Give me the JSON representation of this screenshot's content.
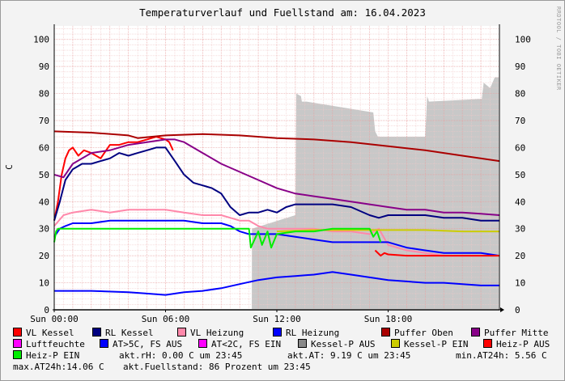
{
  "title": "Temperaturverlauf und Fuellstand am: 16.04.2023",
  "watermark": "RRDTOOL / TOBI OETIKER",
  "chart_data": {
    "type": "line",
    "ylabel": "C",
    "ylim": [
      0,
      105
    ],
    "y_ticks": [
      0,
      10,
      20,
      30,
      40,
      50,
      60,
      70,
      80,
      90,
      100
    ],
    "xlim": [
      0,
      24
    ],
    "x_ticks": [
      {
        "at": 0,
        "label": "Sun 00:00"
      },
      {
        "at": 6,
        "label": "Sun 06:00"
      },
      {
        "at": 12,
        "label": "Sun 12:00"
      },
      {
        "at": 18,
        "label": "Sun 18:00"
      }
    ],
    "grid": true,
    "legend_position": "bottom",
    "fill_area": {
      "name": "Fuellstand",
      "color": "#c8c8c8",
      "x": [
        10.65,
        10.66,
        13.0,
        13.05,
        13.3,
        13.35,
        13.6,
        17.2,
        17.3,
        17.45,
        20.0,
        20.1,
        20.2,
        23.05,
        23.15,
        23.5,
        23.75,
        23.96
      ],
      "y": [
        0,
        30,
        35,
        80,
        79,
        77,
        77,
        73,
        66,
        64,
        64,
        79,
        77,
        78,
        84,
        82,
        86,
        86
      ]
    },
    "series": [
      {
        "name": "VL Kessel",
        "color": "#ff0000",
        "x": [
          0,
          0.2,
          0.4,
          0.6,
          0.8,
          1.0,
          1.3,
          1.6,
          2.0,
          2.5,
          3.0,
          3.5,
          4.0,
          4.5,
          5.0,
          5.5,
          6.0,
          6.2,
          6.4
        ],
        "y": [
          33,
          40,
          50,
          56,
          59,
          60,
          57,
          59,
          58,
          56,
          61,
          61,
          62,
          62,
          63,
          64,
          63,
          62,
          59
        ]
      },
      {
        "name": "RL Kessel",
        "color": "#000080",
        "x": [
          0,
          0.3,
          0.6,
          1.0,
          1.5,
          2.0,
          2.5,
          3.0,
          3.5,
          4.0,
          4.5,
          5.0,
          5.5,
          6.0,
          6.5,
          7.0,
          7.5,
          8.0,
          8.5,
          9.0,
          9.5,
          10.0,
          10.5,
          11.0,
          11.5,
          12.0,
          12.5,
          13.0,
          14.0,
          15.0,
          16.0,
          17.0,
          17.5,
          18.0,
          19.0,
          20.0,
          21.0,
          22.0,
          23.0,
          24.0
        ],
        "y": [
          33,
          40,
          48,
          52,
          54,
          54,
          55,
          56,
          58,
          57,
          58,
          59,
          60,
          60,
          55,
          50,
          47,
          46,
          45,
          43,
          38,
          35,
          36,
          36,
          37,
          36,
          38,
          39,
          39,
          39,
          38,
          35,
          34,
          35,
          35,
          35,
          34,
          34,
          33,
          33
        ]
      },
      {
        "name": "VL Heizung",
        "color": "#ff88aa",
        "x": [
          0,
          0.5,
          1.0,
          2.0,
          3.0,
          4.0,
          5.0,
          6.0,
          7.0,
          8.0,
          9.0,
          9.5,
          10.0,
          10.5,
          11.0,
          11.5,
          12.0,
          13.0,
          14.0,
          15.0,
          16.0,
          17.0,
          17.5,
          18.0,
          19.0,
          20.0,
          21.0,
          22.0,
          23.0,
          24.0
        ],
        "y": [
          31,
          35,
          36,
          37,
          36,
          37,
          37,
          37,
          36,
          35,
          35,
          34,
          33,
          33,
          31,
          30,
          30,
          30,
          30,
          29,
          29,
          28,
          30,
          24,
          22,
          21,
          20,
          20,
          20,
          20
        ]
      },
      {
        "name": "RL Heizung",
        "color": "#0000ff",
        "x": [
          0,
          0.3,
          0.6,
          1.0,
          2.0,
          3.0,
          4.0,
          5.0,
          6.0,
          7.0,
          8.0,
          9.0,
          9.5,
          10.0,
          10.5,
          11.0,
          12.0,
          13.0,
          14.0,
          15.0,
          16.0,
          17.0,
          18.0,
          19.0,
          20.0,
          21.0,
          22.0,
          23.0,
          24.0
        ],
        "y": [
          27,
          30,
          31,
          32,
          32,
          33,
          33,
          33,
          33,
          33,
          32,
          32,
          31,
          29,
          28,
          28,
          28,
          27,
          26,
          25,
          25,
          25,
          25,
          23,
          22,
          21,
          21,
          21,
          20
        ]
      },
      {
        "name": "Puffer Oben",
        "color": "#aa0000",
        "x": [
          0,
          2,
          4,
          4.5,
          6,
          8,
          10,
          12,
          14,
          16,
          18,
          20,
          22,
          24
        ],
        "y": [
          66,
          65.5,
          64.5,
          63.5,
          64.5,
          65,
          64.5,
          63.5,
          63,
          62,
          60.5,
          59,
          57,
          55
        ]
      },
      {
        "name": "Puffer Mitte",
        "color": "#880088",
        "x": [
          0,
          0.5,
          1.0,
          2.0,
          3.0,
          4.0,
          5.0,
          6.0,
          6.5,
          7.0,
          8.0,
          9.0,
          10.0,
          11.0,
          12.0,
          13.0,
          14.0,
          15.0,
          16.0,
          17.0,
          18.0,
          19.0,
          20.0,
          21.0,
          22.0,
          23.0,
          24.0
        ],
        "y": [
          50,
          49,
          54,
          58,
          59,
          61,
          62,
          63,
          63,
          62,
          58,
          54,
          51,
          48,
          45,
          43,
          42,
          41,
          40,
          39,
          38,
          37,
          37,
          36,
          36,
          35.5,
          35
        ]
      },
      {
        "name": "Luftfeuchte",
        "color": "#ff00ff",
        "x": [
          0,
          24
        ],
        "y": [
          0,
          0
        ]
      },
      {
        "name": "AT>5C, FS AUS",
        "color": "#0000ff",
        "x": [
          0,
          2,
          4,
          5,
          6,
          7,
          8,
          9,
          10,
          11,
          12,
          13,
          14,
          15,
          16,
          17,
          18,
          19,
          20,
          21,
          22,
          23,
          24
        ],
        "y": [
          7,
          7,
          6.5,
          6,
          5.5,
          6.5,
          7,
          8,
          9.5,
          11,
          12,
          12.5,
          13,
          14,
          13,
          12,
          11,
          10.5,
          10,
          10,
          9.5,
          9,
          9
        ]
      },
      {
        "name": "AT<2C, FS EIN",
        "color": "#ff00ff",
        "x": [
          0,
          24
        ],
        "y": [
          0,
          0
        ]
      },
      {
        "name": "Kessel-P AUS",
        "color": "#888888",
        "x": [
          0,
          24
        ],
        "y": [
          0,
          0
        ]
      },
      {
        "name": "Kessel-P EIN",
        "color": "#cccc00",
        "x": [
          12,
          14,
          16,
          18,
          20,
          22,
          24
        ],
        "y": [
          29,
          29.5,
          29.5,
          29.5,
          29.5,
          29,
          29
        ]
      },
      {
        "name": "Heiz-P AUS",
        "color": "#ff0000",
        "x": [
          17.3,
          17.6,
          17.8,
          18.0,
          19.0,
          20.0,
          22.0,
          24.0
        ],
        "y": [
          22,
          20,
          21,
          20.5,
          20,
          20,
          20,
          20
        ]
      },
      {
        "name": "Heiz-P EIN",
        "color": "#00ee00",
        "x": [
          0,
          0.1,
          0.2,
          1.0,
          2.0,
          4.0,
          6.0,
          8.0,
          9.5,
          10.0,
          10.5,
          10.6,
          11.0,
          11.2,
          11.5,
          11.7,
          12.0,
          13.0,
          14.0,
          15.0,
          16.0,
          17.0,
          17.2,
          17.4,
          17.6
        ],
        "y": [
          25,
          29,
          30,
          30,
          30,
          30,
          30,
          30,
          30,
          30,
          30,
          23,
          29,
          24,
          29,
          23,
          28,
          29,
          29,
          30,
          30,
          30,
          27,
          29,
          25
        ]
      }
    ]
  },
  "legend": [
    {
      "label": "VL Kessel",
      "color": "#ff0000"
    },
    {
      "label": "RL Kessel",
      "color": "#000080"
    },
    {
      "label": "VL Heizung",
      "color": "#ff88aa"
    },
    {
      "label": "RL Heizung",
      "color": "#0000ff"
    },
    {
      "label": "Puffer Oben",
      "color": "#aa0000"
    },
    {
      "label": "Puffer Mitte",
      "color": "#880088"
    },
    {
      "label": "Luftfeuchte",
      "color": "#ff00ff"
    },
    {
      "label": "AT>5C, FS AUS",
      "color": "#0000ff"
    },
    {
      "label": "AT<2C, FS EIN",
      "color": "#ff00ff"
    },
    {
      "label": "Kessel-P AUS",
      "color": "#888888"
    },
    {
      "label": "Kessel-P EIN",
      "color": "#cccc00"
    },
    {
      "label": "Heiz-P AUS",
      "color": "#ff0000"
    },
    {
      "label": "Heiz-P EIN",
      "color": "#00ee00"
    }
  ],
  "info": {
    "akt_rh": "akt.rH: 0.00 C um 23:45",
    "akt_at": "akt.AT: 9.19 C um 23:45",
    "min_at24h": "min.AT24h: 5.56 C",
    "max_at24h": "max.AT24h:14.06 C",
    "fuellstand": "akt.Fuellstand:   86 Prozent um 23:45"
  }
}
